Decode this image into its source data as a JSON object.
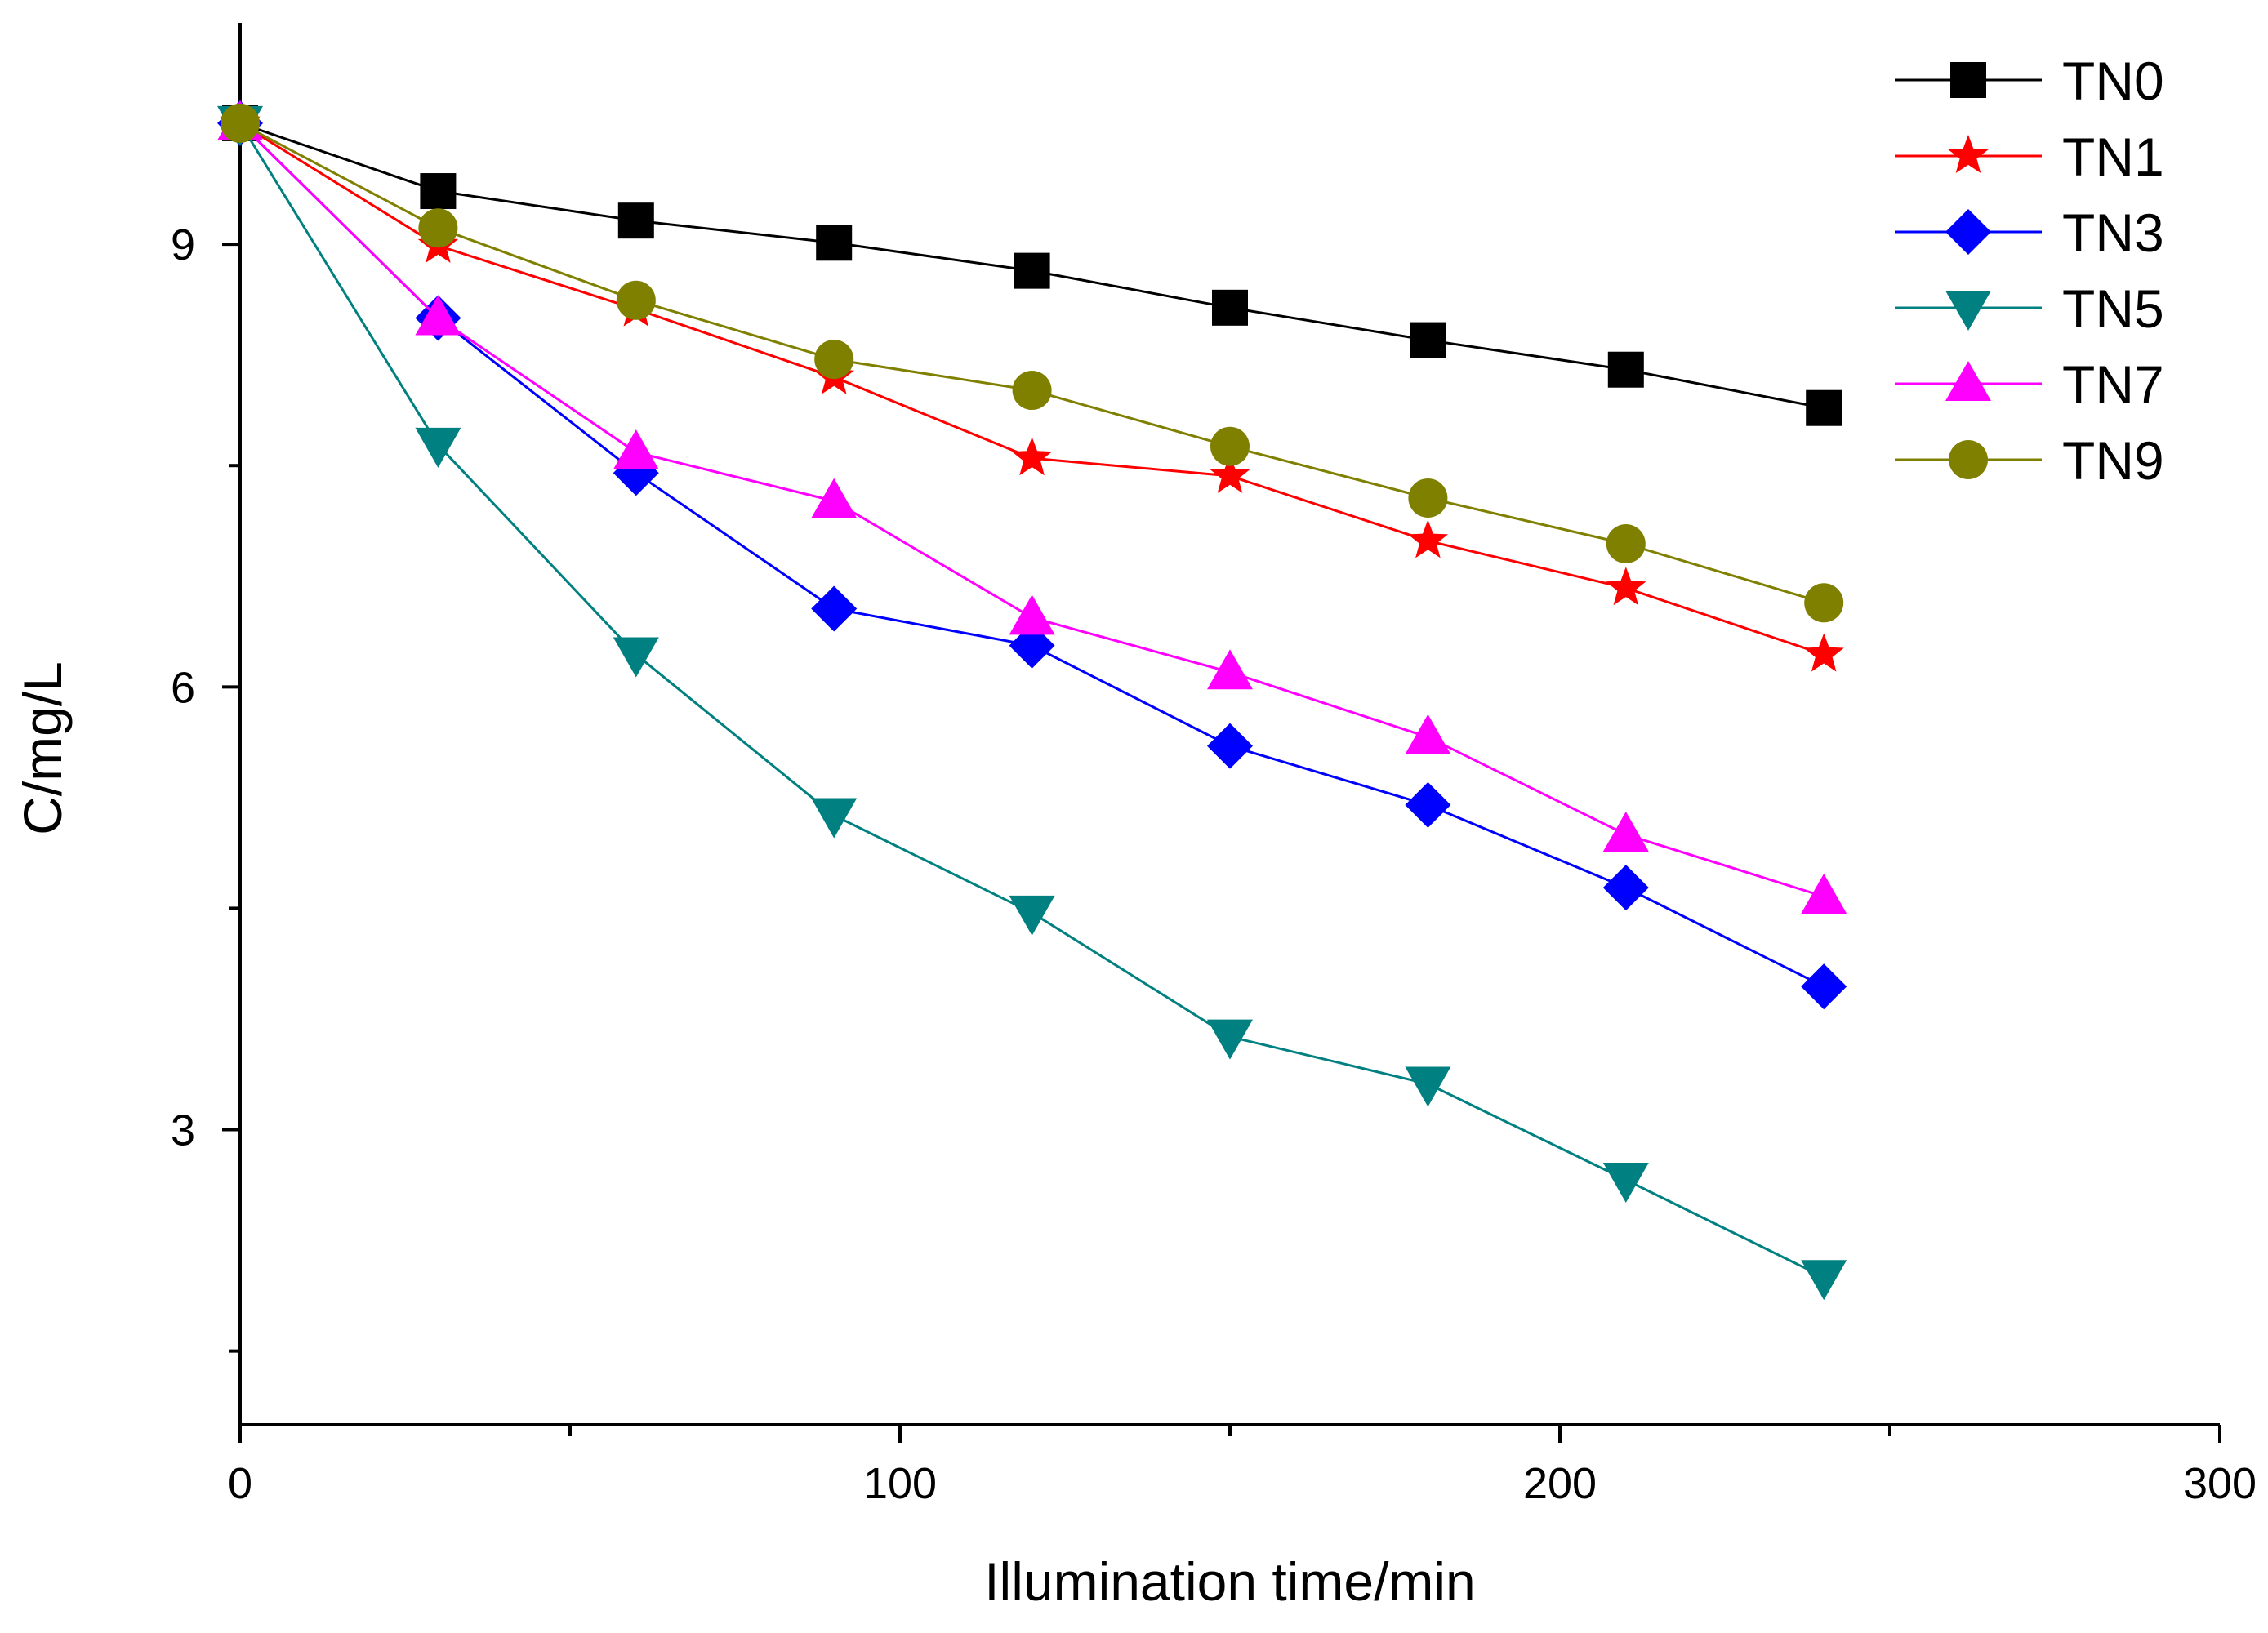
{
  "chart_data": {
    "type": "line",
    "title": "",
    "xlabel": "Illumination time/min",
    "ylabel": "C/mg/L",
    "xlim": [
      0,
      300
    ],
    "ylim": [
      1,
      10.5
    ],
    "xticks": [
      0,
      100,
      200,
      300
    ],
    "yticks": [
      3,
      6,
      9
    ],
    "x": [
      0,
      30,
      60,
      90,
      120,
      150,
      180,
      210,
      240
    ],
    "grid": false,
    "legend_position": "top-right",
    "series": [
      {
        "name": "TN0",
        "color": "#000000",
        "marker": "square",
        "values": [
          9.82,
          9.36,
          9.16,
          9.01,
          8.82,
          8.57,
          8.35,
          8.15,
          7.89
        ]
      },
      {
        "name": "TN1",
        "color": "#ff0000",
        "marker": "star",
        "values": [
          9.82,
          8.99,
          8.56,
          8.1,
          7.55,
          7.43,
          6.99,
          6.67,
          6.22
        ]
      },
      {
        "name": "TN3",
        "color": "#0000ff",
        "marker": "diamond",
        "values": [
          9.82,
          8.5,
          7.45,
          6.53,
          6.28,
          5.6,
          5.2,
          4.64,
          3.97
        ]
      },
      {
        "name": "TN5",
        "color": "#008080",
        "marker": "triangle-down",
        "values": [
          9.82,
          7.64,
          6.22,
          5.13,
          4.47,
          3.63,
          3.31,
          2.66,
          2.0
        ]
      },
      {
        "name": "TN7",
        "color": "#ff00ff",
        "marker": "triangle-up",
        "values": [
          9.82,
          8.5,
          7.59,
          7.26,
          6.47,
          6.1,
          5.66,
          5.0,
          4.58
        ]
      },
      {
        "name": "TN9",
        "color": "#808000",
        "marker": "circle",
        "values": [
          9.82,
          9.11,
          8.62,
          8.22,
          8.01,
          7.63,
          7.28,
          6.97,
          6.57
        ]
      }
    ]
  }
}
